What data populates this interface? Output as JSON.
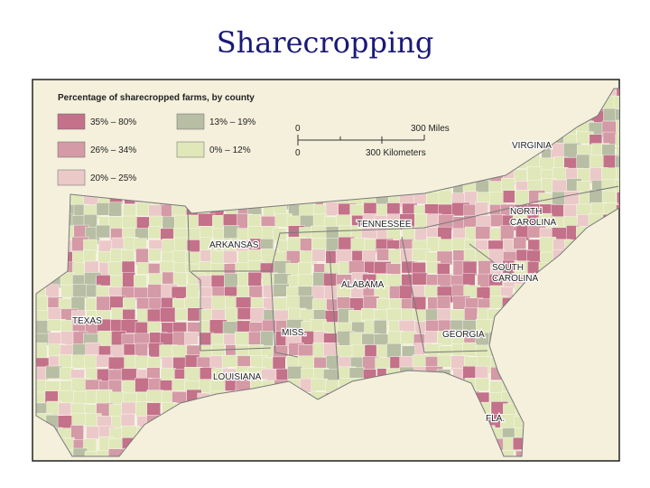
{
  "title": "Sharecropping",
  "map": {
    "legend": {
      "title": "Percentage of sharecropped farms, by county",
      "items": [
        {
          "label": "35% – 80%",
          "color": "#c4718a"
        },
        {
          "label": "26% – 34%",
          "color": "#d49aa6"
        },
        {
          "label": "20% – 25%",
          "color": "#ecc9c9"
        },
        {
          "label": "13% – 19%",
          "color": "#b8bea3"
        },
        {
          "label": "0% – 12%",
          "color": "#e0e7b9"
        }
      ]
    },
    "scale": {
      "miles_zero": "0",
      "miles": "300 Miles",
      "km_zero": "0",
      "km": "300 Kilometers"
    },
    "labels": {
      "virginia": "VIRGINIA",
      "north_carolina": [
        "NORTH",
        "CAROLINA"
      ],
      "tennessee": "TENNESSEE",
      "arkansas": "ARKANSAS",
      "south_carolina": [
        "SOUTH",
        "CAROLINA"
      ],
      "alabama": "ALABAMA",
      "texas": "TEXAS",
      "mississippi": "MISS.",
      "georgia": "GEORGIA",
      "louisiana": "LOUISIANA",
      "florida": "FLA."
    }
  }
}
